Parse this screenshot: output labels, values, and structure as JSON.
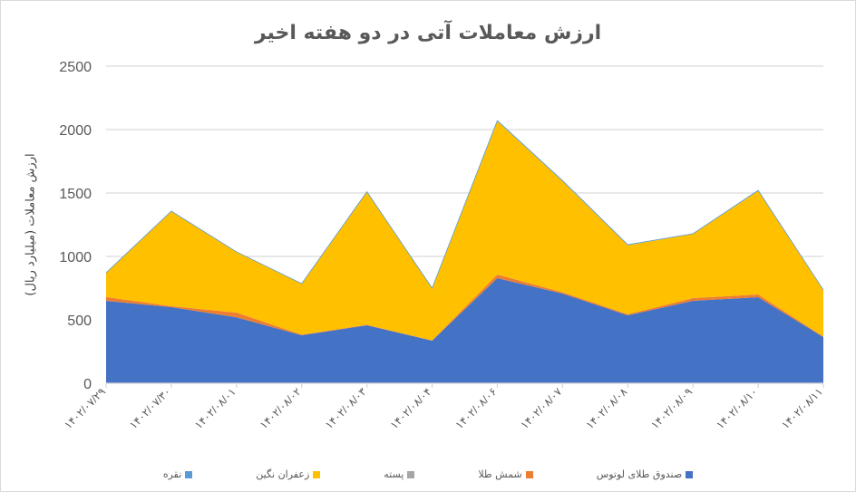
{
  "chart_data": {
    "type": "area",
    "stacked": true,
    "title": "ارزش معاملات آتی در دو هفته اخیر",
    "xlabel": "",
    "ylabel": "ارزش معاملات (میلیارد ریال)",
    "ylim": [
      0,
      2500
    ],
    "yticks": [
      0,
      500,
      1000,
      1500,
      2000,
      2500
    ],
    "grid": true,
    "legend_position": "bottom",
    "categories": [
      "۱۴۰۲/۰۷/۲۹",
      "۱۴۰۲/۰۷/۳۰",
      "۱۴۰۲/۰۸/۰۱",
      "۱۴۰۲/۰۸/۰۲",
      "۱۴۰۲/۰۸/۰۳",
      "۱۴۰۲/۰۸/۰۴",
      "۱۴۰۲/۰۸/۰۶",
      "۱۴۰۲/۰۸/۰۷",
      "۱۴۰۲/۰۸/۰۸",
      "۱۴۰۲/۰۸/۰۹",
      "۱۴۰۲/۰۸/۱۰",
      "۱۴۰۲/۰۸/۱۱"
    ],
    "series": [
      {
        "name": "صندوق طلای لوتوس",
        "color": "#4472C4",
        "values": [
          650,
          600,
          520,
          379,
          457,
          336,
          829,
          707,
          536,
          650,
          679,
          364
        ]
      },
      {
        "name": "شمش طلا",
        "color": "#ED7D31",
        "values": [
          30,
          8,
          37,
          4,
          4,
          2,
          28,
          10,
          8,
          21,
          21,
          4
        ]
      },
      {
        "name": "پسته",
        "color": "#A5A5A5",
        "values": [
          0,
          0,
          0,
          0,
          0,
          0,
          0,
          0,
          0,
          0,
          0,
          0
        ]
      },
      {
        "name": "زعفران نگین",
        "color": "#FFC000",
        "values": [
          191,
          749,
          479,
          403,
          1049,
          412,
          1209,
          876,
          544,
          506,
          816,
          368
        ]
      },
      {
        "name": "نقره",
        "color": "#5B9BD5",
        "values": [
          0,
          0,
          0,
          0,
          0,
          0,
          5,
          5,
          5,
          2,
          5,
          0
        ]
      }
    ]
  },
  "legend": [
    {
      "label": "صندوق طلای لوتوس",
      "color": "#4472C4"
    },
    {
      "label": "شمش طلا",
      "color": "#ED7D31"
    },
    {
      "label": "پسته",
      "color": "#A5A5A5"
    },
    {
      "label": "زعفران نگین",
      "color": "#FFC000"
    },
    {
      "label": "نقره",
      "color": "#5B9BD5"
    }
  ]
}
